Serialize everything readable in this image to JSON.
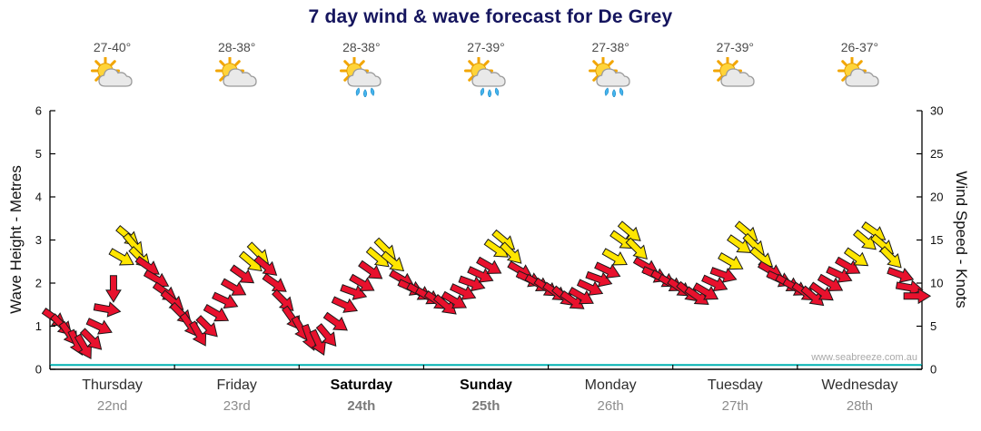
{
  "page": {
    "title": "7 day wind & wave forecast for De Grey",
    "watermark": "www.seabreeze.com.au"
  },
  "days": [
    {
      "name": "Thursday",
      "date": "22nd",
      "temp": "27-40°",
      "icon": "partly-cloudy",
      "weekend": false
    },
    {
      "name": "Friday",
      "date": "23rd",
      "temp": "28-38°",
      "icon": "partly-cloudy",
      "weekend": false
    },
    {
      "name": "Saturday",
      "date": "24th",
      "temp": "28-38°",
      "icon": "showers",
      "weekend": true
    },
    {
      "name": "Sunday",
      "date": "25th",
      "temp": "27-39°",
      "icon": "showers",
      "weekend": true
    },
    {
      "name": "Monday",
      "date": "26th",
      "temp": "27-38°",
      "icon": "showers",
      "weekend": false
    },
    {
      "name": "Tuesday",
      "date": "27th",
      "temp": "27-39°",
      "icon": "partly-cloudy",
      "weekend": false
    },
    {
      "name": "Wednesday",
      "date": "28th",
      "temp": "26-37°",
      "icon": "partly-cloudy",
      "weekend": false
    }
  ],
  "chart_data": {
    "type": "scatter",
    "marker": "wind-arrow",
    "title": "7 day wind & wave forecast for De Grey",
    "x_axis": {
      "unit": "days",
      "range": [
        0,
        7
      ]
    },
    "left_axis": {
      "label": "Wave Height - Metres",
      "min": 0,
      "max": 6,
      "ticks": [
        0,
        1,
        2,
        3,
        4,
        5,
        6
      ]
    },
    "right_axis": {
      "label": "Wind Speed - Knots",
      "min": 0,
      "max": 30,
      "ticks": [
        0,
        5,
        10,
        15,
        20,
        25,
        30
      ]
    },
    "grid": false,
    "colors": {
      "light_wind": "#e8112d",
      "moderate_wind": "#ffe600",
      "arrow_outline": "#1a1a1a",
      "wave_line": "#00b2b2",
      "axis": "#000000"
    },
    "wave_height_m": 0.1,
    "arrow_format": [
      "day_position_0_to_7",
      "wind_speed_knots",
      "rotation_deg_clockwise_from_east",
      "color r=light y=moderate"
    ],
    "arrows": [
      [
        0.03,
        6.0,
        35,
        "r"
      ],
      [
        0.09,
        5.2,
        45,
        "r"
      ],
      [
        0.15,
        4.2,
        55,
        "r"
      ],
      [
        0.21,
        3.2,
        65,
        "r"
      ],
      [
        0.27,
        2.7,
        60,
        "r"
      ],
      [
        0.33,
        3.5,
        45,
        "r"
      ],
      [
        0.39,
        5.0,
        25,
        "r"
      ],
      [
        0.45,
        7.0,
        10,
        "r"
      ],
      [
        0.51,
        9.5,
        90,
        "r"
      ],
      [
        0.57,
        13.0,
        30,
        "y"
      ],
      [
        0.62,
        15.5,
        40,
        "y"
      ],
      [
        0.67,
        14.5,
        50,
        "y"
      ],
      [
        0.72,
        13.0,
        45,
        "y"
      ],
      [
        0.78,
        12.0,
        35,
        "r"
      ],
      [
        0.85,
        10.5,
        30,
        "r"
      ],
      [
        0.92,
        9.0,
        35,
        "r"
      ],
      [
        0.98,
        8.0,
        40,
        "r"
      ],
      [
        1.05,
        6.5,
        45,
        "r"
      ],
      [
        1.12,
        5.2,
        55,
        "r"
      ],
      [
        1.19,
        4.2,
        60,
        "r"
      ],
      [
        1.26,
        5.0,
        45,
        "r"
      ],
      [
        1.33,
        6.5,
        30,
        "r"
      ],
      [
        1.4,
        8.0,
        25,
        "r"
      ],
      [
        1.47,
        9.5,
        30,
        "r"
      ],
      [
        1.54,
        11.0,
        35,
        "r"
      ],
      [
        1.61,
        12.5,
        40,
        "y"
      ],
      [
        1.67,
        13.5,
        45,
        "y"
      ],
      [
        1.73,
        12.0,
        40,
        "r"
      ],
      [
        1.8,
        10.0,
        35,
        "r"
      ],
      [
        1.87,
        8.0,
        45,
        "r"
      ],
      [
        1.94,
        6.0,
        55,
        "r"
      ],
      [
        2.01,
        4.8,
        60,
        "r"
      ],
      [
        2.08,
        3.8,
        70,
        "r"
      ],
      [
        2.15,
        3.2,
        65,
        "r"
      ],
      [
        2.22,
        4.0,
        50,
        "r"
      ],
      [
        2.29,
        5.5,
        35,
        "r"
      ],
      [
        2.36,
        7.5,
        25,
        "r"
      ],
      [
        2.43,
        9.0,
        20,
        "r"
      ],
      [
        2.5,
        10.0,
        30,
        "r"
      ],
      [
        2.57,
        11.5,
        35,
        "r"
      ],
      [
        2.63,
        13.0,
        40,
        "y"
      ],
      [
        2.69,
        14.0,
        45,
        "y"
      ],
      [
        2.75,
        12.5,
        40,
        "y"
      ],
      [
        2.82,
        10.5,
        30,
        "r"
      ],
      [
        2.89,
        9.5,
        25,
        "r"
      ],
      [
        2.96,
        9.0,
        30,
        "r"
      ],
      [
        3.03,
        8.5,
        30,
        "r"
      ],
      [
        3.1,
        8.0,
        35,
        "r"
      ],
      [
        3.17,
        7.5,
        40,
        "r"
      ],
      [
        3.24,
        8.0,
        30,
        "r"
      ],
      [
        3.31,
        9.0,
        25,
        "r"
      ],
      [
        3.38,
        10.0,
        20,
        "r"
      ],
      [
        3.45,
        11.0,
        25,
        "r"
      ],
      [
        3.52,
        12.0,
        30,
        "r"
      ],
      [
        3.58,
        14.0,
        35,
        "y"
      ],
      [
        3.64,
        15.0,
        40,
        "y"
      ],
      [
        3.7,
        13.5,
        45,
        "y"
      ],
      [
        3.77,
        11.5,
        30,
        "r"
      ],
      [
        3.84,
        10.5,
        25,
        "r"
      ],
      [
        3.91,
        10.0,
        30,
        "r"
      ],
      [
        3.98,
        9.5,
        35,
        "r"
      ],
      [
        4.05,
        9.0,
        35,
        "r"
      ],
      [
        4.12,
        8.5,
        40,
        "r"
      ],
      [
        4.19,
        8.0,
        35,
        "r"
      ],
      [
        4.26,
        8.5,
        30,
        "r"
      ],
      [
        4.33,
        9.5,
        25,
        "r"
      ],
      [
        4.4,
        10.5,
        20,
        "r"
      ],
      [
        4.47,
        11.5,
        25,
        "r"
      ],
      [
        4.53,
        13.0,
        30,
        "y"
      ],
      [
        4.59,
        15.0,
        35,
        "y"
      ],
      [
        4.65,
        16.0,
        40,
        "y"
      ],
      [
        4.71,
        14.0,
        45,
        "y"
      ],
      [
        4.78,
        12.0,
        30,
        "r"
      ],
      [
        4.85,
        11.0,
        25,
        "r"
      ],
      [
        4.92,
        10.5,
        30,
        "r"
      ],
      [
        4.98,
        10.0,
        30,
        "r"
      ],
      [
        5.05,
        9.5,
        35,
        "r"
      ],
      [
        5.12,
        9.0,
        40,
        "r"
      ],
      [
        5.19,
        8.5,
        35,
        "r"
      ],
      [
        5.26,
        9.0,
        30,
        "r"
      ],
      [
        5.33,
        10.0,
        25,
        "r"
      ],
      [
        5.4,
        11.0,
        20,
        "r"
      ],
      [
        5.46,
        12.5,
        30,
        "y"
      ],
      [
        5.53,
        14.5,
        35,
        "y"
      ],
      [
        5.59,
        16.0,
        40,
        "y"
      ],
      [
        5.65,
        14.5,
        45,
        "y"
      ],
      [
        5.71,
        13.0,
        40,
        "y"
      ],
      [
        5.78,
        11.5,
        30,
        "r"
      ],
      [
        5.85,
        10.5,
        25,
        "r"
      ],
      [
        5.92,
        10.0,
        30,
        "r"
      ],
      [
        5.98,
        9.5,
        30,
        "r"
      ],
      [
        6.05,
        9.0,
        35,
        "r"
      ],
      [
        6.12,
        8.5,
        40,
        "r"
      ],
      [
        6.19,
        9.0,
        35,
        "r"
      ],
      [
        6.26,
        10.0,
        30,
        "r"
      ],
      [
        6.33,
        11.0,
        25,
        "r"
      ],
      [
        6.4,
        12.0,
        30,
        "r"
      ],
      [
        6.47,
        13.0,
        35,
        "y"
      ],
      [
        6.54,
        15.0,
        40,
        "y"
      ],
      [
        6.61,
        16.0,
        35,
        "y"
      ],
      [
        6.68,
        14.5,
        40,
        "y"
      ],
      [
        6.75,
        13.0,
        45,
        "y"
      ],
      [
        6.82,
        11.0,
        20,
        "r"
      ],
      [
        6.89,
        9.5,
        10,
        "r"
      ],
      [
        6.95,
        8.5,
        0,
        "r"
      ]
    ]
  }
}
